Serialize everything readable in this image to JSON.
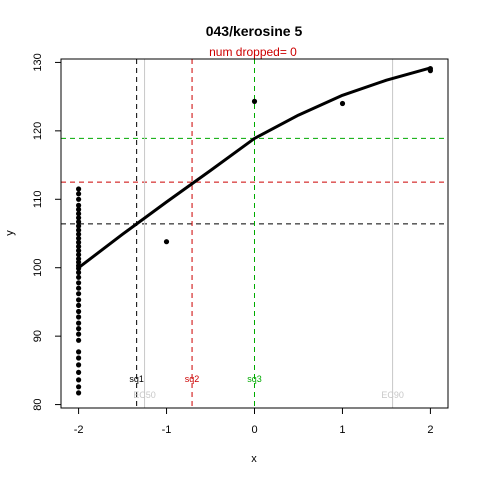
{
  "chart_data": {
    "type": "scatter",
    "title": "043/kerosine 5",
    "subtitle": "num dropped= 0",
    "xlabel": "x",
    "ylabel": "y",
    "xlim": [
      -2.2,
      2.2
    ],
    "ylim": [
      79.5,
      130.5
    ],
    "xticks": [
      -2,
      -1,
      0,
      1,
      2
    ],
    "yticks": [
      80,
      90,
      100,
      110,
      120,
      130
    ],
    "grid": false,
    "colors": {
      "points": "#000000",
      "curve": "#000000",
      "sq1": "#000000",
      "sq2": "#cc0000",
      "sq3": "#00aa00",
      "ec": "#c8c8c8",
      "subtitle": "#cc0000"
    },
    "points": [
      [
        -2,
        81.7
      ],
      [
        -2,
        82.6
      ],
      [
        -2,
        83.6
      ],
      [
        -2,
        84.7
      ],
      [
        -2,
        85.8
      ],
      [
        -2,
        86.8
      ],
      [
        -2,
        87.7
      ],
      [
        -2,
        89.4
      ],
      [
        -2,
        90.3
      ],
      [
        -2,
        91.1
      ],
      [
        -2,
        91.9
      ],
      [
        -2,
        92.8
      ],
      [
        -2,
        93.6
      ],
      [
        -2,
        94.5
      ],
      [
        -2,
        95.3
      ],
      [
        -2,
        96.2
      ],
      [
        -2,
        97.0
      ],
      [
        -2,
        97.8
      ],
      [
        -2,
        98.6
      ],
      [
        -2,
        99.3
      ],
      [
        -2,
        99.9
      ],
      [
        -2,
        100.3
      ],
      [
        -2,
        100.8
      ],
      [
        -2,
        101.3
      ],
      [
        -2,
        101.9
      ],
      [
        -2,
        102.5
      ],
      [
        -2,
        103.1
      ],
      [
        -2,
        103.7
      ],
      [
        -2,
        104.3
      ],
      [
        -2,
        104.9
      ],
      [
        -2,
        105.5
      ],
      [
        -2,
        106.1
      ],
      [
        -2,
        106.7
      ],
      [
        -2,
        107.3
      ],
      [
        -2,
        107.9
      ],
      [
        -2,
        108.5
      ],
      [
        -2,
        109.1
      ],
      [
        -2,
        110.0
      ],
      [
        -2,
        110.8
      ],
      [
        -2,
        111.5
      ],
      [
        -1,
        103.8
      ],
      [
        0,
        124.3
      ],
      [
        1,
        124.0
      ],
      [
        2,
        128.8
      ],
      [
        2,
        129.1
      ]
    ],
    "curve": {
      "x": [
        -2,
        -1.5,
        -1,
        -0.5,
        0,
        0.5,
        1,
        1.5,
        2
      ],
      "y": [
        100,
        104.9,
        109.6,
        114.2,
        118.9,
        122.3,
        125.2,
        127.4,
        129.2
      ]
    },
    "hlines": [
      {
        "y": 106.4,
        "color": "#000000"
      },
      {
        "y": 112.5,
        "color": "#cc0000"
      },
      {
        "y": 118.9,
        "color": "#00aa00"
      }
    ],
    "vlines": [
      {
        "x": -1.34,
        "color": "#000000",
        "label": "sq1",
        "dash": true
      },
      {
        "x": -0.71,
        "color": "#cc0000",
        "label": "sq2",
        "dash": true
      },
      {
        "x": 0.0,
        "color": "#00aa00",
        "label": "sq3",
        "dash": true
      },
      {
        "x": -1.25,
        "color": "#c8c8c8",
        "label": "EC50",
        "dash": false
      },
      {
        "x": 1.57,
        "color": "#c8c8c8",
        "label": "EC90",
        "dash": false
      }
    ]
  }
}
